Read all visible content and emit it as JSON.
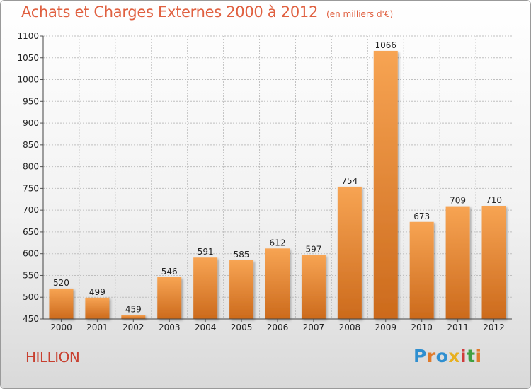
{
  "header": {
    "title": "Achats et Charges Externes 2000 à 2012",
    "subtitle": "(en milliers d'€)"
  },
  "footer": {
    "commune": "HILLION",
    "logo_text": "Proxiti",
    "logo_colors": [
      "#2f8fd0",
      "#e07a2a",
      "#2f8fd0",
      "#e8b020",
      "#d03a3a",
      "#40a040",
      "#e07a2a"
    ]
  },
  "colors": {
    "title": "#e06040",
    "bar_top": "#f7a453",
    "bar_bottom": "#cc6a1c",
    "grid": "#bfbfbf"
  },
  "chart_data": {
    "type": "bar",
    "title": "Achats et Charges Externes 2000 à 2012",
    "subtitle": "(en milliers d'€)",
    "categories": [
      "2000",
      "2001",
      "2002",
      "2003",
      "2004",
      "2005",
      "2006",
      "2007",
      "2008",
      "2009",
      "2010",
      "2011",
      "2012"
    ],
    "values": [
      520,
      499,
      459,
      546,
      591,
      585,
      612,
      597,
      754,
      1066,
      673,
      709,
      710
    ],
    "ylim": [
      450,
      1100
    ],
    "yticks": [
      450,
      500,
      550,
      600,
      650,
      700,
      750,
      800,
      850,
      900,
      950,
      1000,
      1050,
      1100
    ],
    "grid": true,
    "xlabel": "",
    "ylabel": ""
  }
}
